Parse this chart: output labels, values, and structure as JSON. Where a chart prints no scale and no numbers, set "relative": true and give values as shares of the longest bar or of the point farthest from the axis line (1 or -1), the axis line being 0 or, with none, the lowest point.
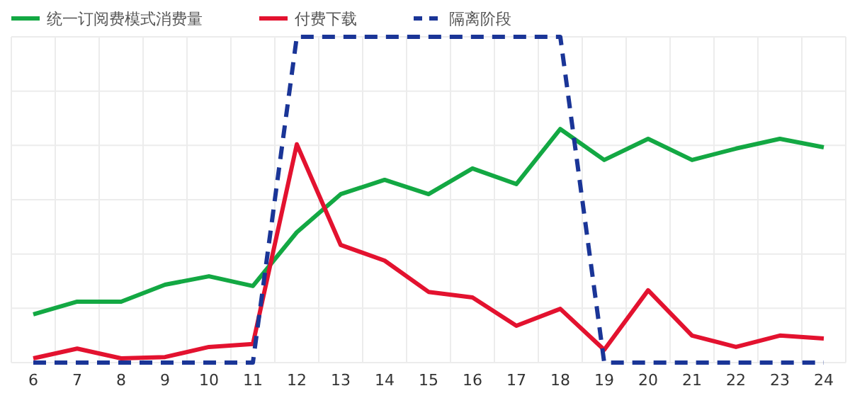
{
  "chart_data": {
    "type": "line",
    "relative": true,
    "grid": true,
    "legend": "top left",
    "categories": [
      "6",
      "7",
      "8",
      "9",
      "10",
      "11",
      "12",
      "13",
      "14",
      "15",
      "16",
      "17",
      "18",
      "19",
      "20",
      "21",
      "22",
      "23",
      "24"
    ],
    "series": [
      {
        "name": "统一订阅费模式消费量",
        "color": "#13a843",
        "values": [
          0.148,
          0.187,
          0.187,
          0.239,
          0.265,
          0.235,
          0.4,
          0.517,
          0.561,
          0.517,
          0.596,
          0.548,
          0.717,
          0.622,
          0.687,
          0.622,
          0.657,
          0.687,
          0.661
        ]
      },
      {
        "name": "付费下载",
        "color": "#e3122f",
        "values": [
          0.013,
          0.043,
          0.013,
          0.017,
          0.048,
          0.057,
          0.67,
          0.361,
          0.313,
          0.217,
          0.2,
          0.113,
          0.165,
          0.039,
          0.222,
          0.083,
          0.048,
          0.083,
          0.074
        ]
      },
      {
        "name": "隔离阶段",
        "color": "#1a3597",
        "line_style": "dashed",
        "values": [
          0,
          0,
          0,
          0,
          0,
          0,
          1,
          1,
          1,
          1,
          1,
          1,
          1,
          0,
          0,
          0,
          0,
          0,
          0
        ]
      }
    ]
  }
}
